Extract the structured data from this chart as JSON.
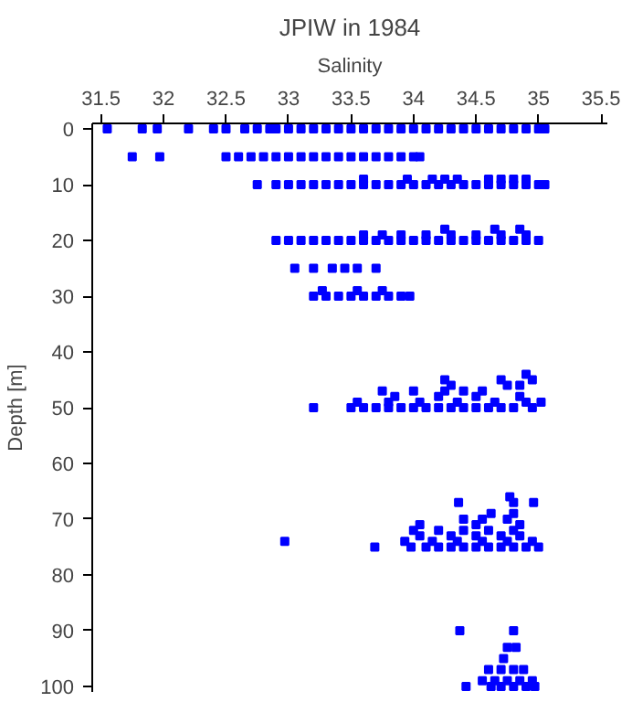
{
  "chart_data": {
    "type": "scatter",
    "title": "JPIW in 1984",
    "xlabel": "Salinity",
    "ylabel": "Depth [m]",
    "marker": "square",
    "grid": false,
    "xlim": [
      31.43,
      35.55
    ],
    "ylim": [
      101,
      -1
    ],
    "xticks": [
      31.5,
      32,
      32.5,
      33,
      33.5,
      34,
      34.5,
      35,
      35.5
    ],
    "yticks": [
      0,
      10,
      20,
      30,
      40,
      50,
      60,
      70,
      80,
      90,
      100
    ],
    "series": [
      {
        "color": "#0000ff",
        "x": [
          31.55,
          31.83,
          31.95,
          32.2,
          32.4,
          32.5,
          32.65,
          32.75,
          32.85,
          32.9,
          33.0,
          33.1,
          33.2,
          33.3,
          33.4,
          33.5,
          33.6,
          33.7,
          33.8,
          33.9,
          34.0,
          34.1,
          34.2,
          34.3,
          34.4,
          34.5,
          34.6,
          34.7,
          34.8,
          34.9,
          35.0,
          35.05
        ],
        "values": [
          0,
          0,
          0,
          0,
          0,
          0,
          0,
          0,
          0,
          0,
          0,
          0,
          0,
          0,
          0,
          0,
          0,
          0,
          0,
          0,
          0,
          0,
          0,
          0,
          0,
          0,
          0,
          0,
          0,
          0,
          0,
          0
        ]
      },
      {
        "color": "#0000ff",
        "x": [
          31.75,
          31.97,
          32.5,
          32.6,
          32.7,
          32.8,
          32.9,
          33.0,
          33.1,
          33.2,
          33.3,
          33.4,
          33.5,
          33.6,
          33.7,
          33.8,
          33.9,
          34.0,
          34.05
        ],
        "values": [
          5,
          5,
          5,
          5,
          5,
          5,
          5,
          5,
          5,
          5,
          5,
          5,
          5,
          5,
          5,
          5,
          5,
          5,
          5
        ]
      },
      {
        "color": "#0000ff",
        "x": [
          32.75,
          32.9,
          33.0,
          33.1,
          33.2,
          33.3,
          33.4,
          33.5,
          33.6,
          33.7,
          33.8,
          33.9,
          34.0,
          34.1,
          34.2,
          34.3,
          34.4,
          34.5,
          34.6,
          34.7,
          34.8,
          34.9,
          35.0,
          35.05
        ],
        "values": [
          10,
          10,
          10,
          10,
          10,
          10,
          10,
          10,
          10,
          10,
          10,
          10,
          10,
          10,
          10,
          10,
          10,
          10,
          10,
          10,
          10,
          10,
          10,
          10
        ]
      },
      {
        "color": "#0000ff",
        "x": [
          33.6,
          33.95,
          34.15,
          34.25,
          34.35,
          34.6,
          34.7,
          34.8,
          34.9
        ],
        "values": [
          9,
          9,
          9,
          9,
          9,
          9,
          9,
          9,
          9
        ]
      },
      {
        "color": "#0000ff",
        "x": [
          32.9,
          33.0,
          33.1,
          33.2,
          33.3,
          33.4,
          33.5,
          33.6,
          33.7,
          33.8,
          33.9,
          34.0,
          34.1,
          34.2,
          34.3,
          34.4,
          34.5,
          34.6,
          34.7,
          34.8,
          34.9,
          35.0
        ],
        "values": [
          20,
          20,
          20,
          20,
          20,
          20,
          20,
          20,
          20,
          20,
          20,
          20,
          20,
          20,
          20,
          20,
          20,
          20,
          20,
          20,
          20,
          20
        ]
      },
      {
        "color": "#0000ff",
        "x": [
          33.6,
          33.75,
          33.9,
          34.1,
          34.3,
          34.5,
          34.7,
          34.9
        ],
        "values": [
          19,
          19,
          19,
          19,
          19,
          19,
          19,
          19
        ]
      },
      {
        "color": "#0000ff",
        "x": [
          34.25,
          34.65,
          34.85
        ],
        "values": [
          18,
          18,
          18
        ]
      },
      {
        "color": "#0000ff",
        "x": [
          33.05,
          33.2,
          33.35,
          33.45,
          33.55,
          33.7
        ],
        "values": [
          25,
          25,
          25,
          25,
          25,
          25
        ]
      },
      {
        "color": "#0000ff",
        "x": [
          33.2,
          33.3,
          33.4,
          33.5,
          33.6,
          33.7,
          33.8,
          33.9,
          33.97
        ],
        "values": [
          30,
          30,
          30,
          30,
          30,
          30,
          30,
          30,
          30
        ]
      },
      {
        "color": "#0000ff",
        "x": [
          33.27,
          33.55,
          33.75
        ],
        "values": [
          29,
          29,
          29
        ]
      },
      {
        "color": "#0000ff",
        "x": [
          33.2,
          33.5,
          33.6,
          33.7,
          33.8,
          33.9,
          34.0,
          34.1,
          34.2,
          34.3,
          34.4,
          34.5,
          34.6,
          34.7,
          34.8,
          34.95
        ],
        "values": [
          50,
          50,
          50,
          50,
          50,
          50,
          50,
          50,
          50,
          50,
          50,
          50,
          50,
          50,
          50,
          50
        ]
      },
      {
        "color": "#0000ff",
        "x": [
          33.55,
          33.8,
          34.05,
          34.35,
          34.65,
          34.9,
          35.02
        ],
        "values": [
          49,
          49,
          49,
          49,
          49,
          49,
          49
        ]
      },
      {
        "color": "#0000ff",
        "x": [
          33.85,
          34.2,
          34.5,
          34.85
        ],
        "values": [
          48,
          48,
          48,
          48
        ]
      },
      {
        "color": "#0000ff",
        "x": [
          33.75,
          34.0,
          34.25,
          34.4,
          34.55
        ],
        "values": [
          47,
          47,
          47,
          47,
          47
        ]
      },
      {
        "color": "#0000ff",
        "x": [
          34.3,
          34.75,
          34.85,
          34.25,
          34.7,
          34.95,
          34.9
        ],
        "values": [
          46,
          46,
          46,
          45,
          45,
          45,
          44
        ]
      },
      {
        "color": "#0000ff",
        "x": [
          33.69,
          33.98,
          34.1,
          34.2,
          34.3,
          34.4,
          34.5,
          34.6,
          34.7,
          34.8,
          34.9,
          35.0
        ],
        "values": [
          75,
          75,
          75,
          75,
          75,
          75,
          75,
          75,
          75,
          75,
          75,
          75
        ]
      },
      {
        "color": "#0000ff",
        "x": [
          32.97,
          33.93,
          34.15,
          34.35,
          34.55,
          34.75,
          34.95
        ],
        "values": [
          74,
          74,
          74,
          74,
          74,
          74,
          74
        ]
      },
      {
        "color": "#0000ff",
        "x": [
          34.05,
          34.3,
          34.5,
          34.7,
          34.85,
          34.0,
          34.2,
          34.4,
          34.6,
          34.8
        ],
        "values": [
          73,
          73,
          73,
          73,
          73,
          72,
          72,
          72,
          72,
          72
        ]
      },
      {
        "color": "#0000ff",
        "x": [
          34.05,
          34.5,
          34.85,
          34.4,
          34.55,
          34.75,
          34.62,
          34.8,
          34.36,
          34.8,
          34.96,
          34.77
        ],
        "values": [
          71,
          71,
          71,
          70,
          70,
          70,
          69,
          69,
          67,
          67,
          67,
          66
        ]
      },
      {
        "color": "#0000ff",
        "x": [
          34.37,
          34.8,
          34.75,
          34.82,
          34.72
        ],
        "values": [
          90,
          90,
          93,
          93,
          95
        ]
      },
      {
        "color": "#0000ff",
        "x": [
          34.6,
          34.7,
          34.8,
          34.88,
          34.55,
          34.65,
          34.75,
          34.85,
          34.95,
          34.42,
          34.62,
          34.7,
          34.8,
          34.9,
          34.97
        ],
        "values": [
          97,
          97,
          97,
          97,
          99,
          99,
          99,
          99,
          99,
          100,
          100,
          100,
          100,
          100,
          100
        ]
      }
    ]
  }
}
